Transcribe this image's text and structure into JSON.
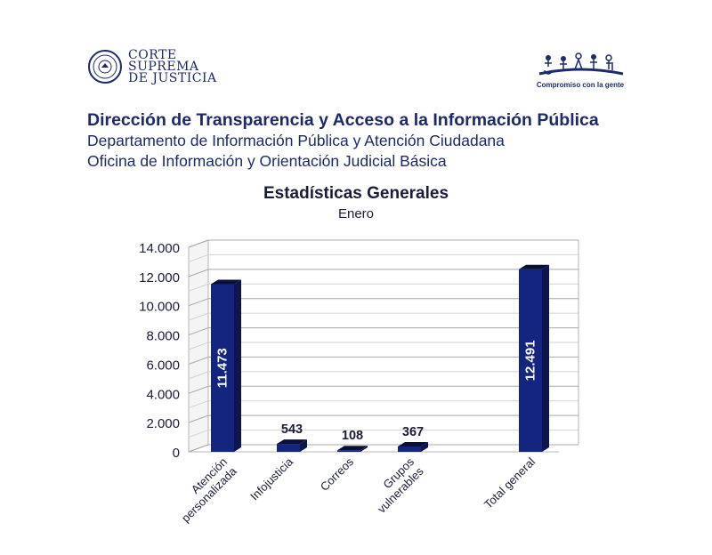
{
  "header": {
    "org_logo_lines": [
      "CORTE",
      "SUPREMA",
      "DE JUSTICIA"
    ],
    "campaign_motto": "Compromiso con la gente",
    "title": "Dirección de Transparencia y Acceso a la Información Pública",
    "subtitle_1": "Departamento de Información Pública y Atención Ciudadana",
    "subtitle_2": "Oficina de Información y Orientación Judicial Básica"
  },
  "colors": {
    "bar_front": "#142580",
    "bar_side": "#0c1550",
    "bar_top": "#0a0f3a",
    "text": "#1b2a6b"
  },
  "chart_data": {
    "type": "bar",
    "title": "Estadísticas Generales",
    "subtitle": "Enero",
    "categories": [
      [
        "Atención",
        "personalizada"
      ],
      [
        "Infojusticia"
      ],
      [
        "Correos"
      ],
      [
        "Grupos",
        "vulnerables"
      ],
      [
        "Total general"
      ]
    ],
    "values": [
      11473,
      543,
      108,
      367,
      12491
    ],
    "value_labels": [
      "11.473",
      "543",
      "108",
      "367",
      "12.491"
    ],
    "label_inside": [
      true,
      false,
      false,
      false,
      true
    ],
    "yticks": [
      "0",
      "2.000",
      "4.000",
      "6.000",
      "8.000",
      "10.000",
      "12.000",
      "14.000"
    ],
    "ylim": [
      0,
      14000
    ],
    "grid": true
  }
}
